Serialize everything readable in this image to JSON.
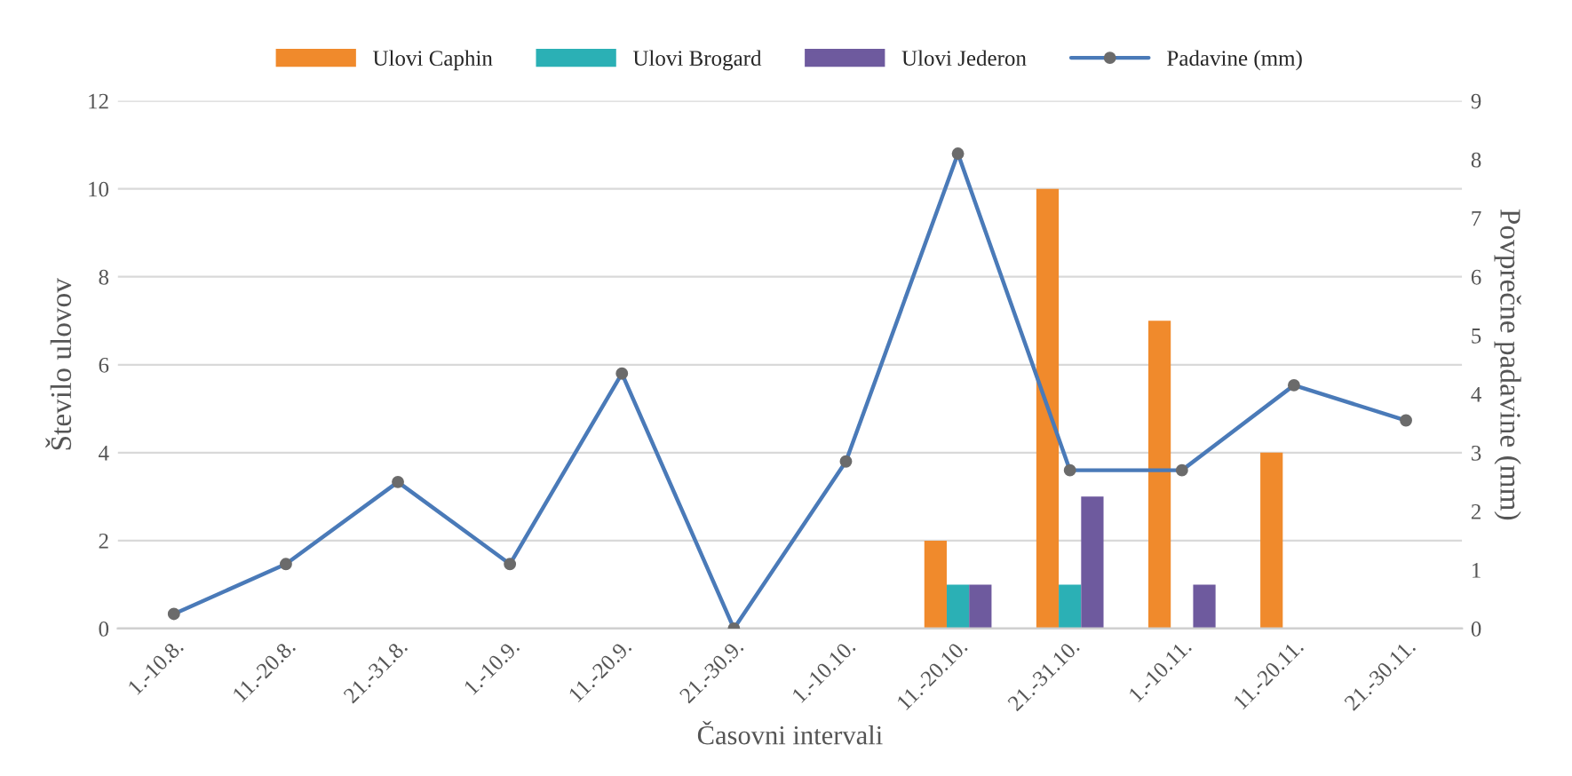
{
  "chart_data": {
    "type": "bar",
    "xlabel": "Časovni intervali",
    "ylabel": "Število ulovov",
    "y2label": "Povprečne padavine (mm)",
    "categories": [
      "1.-10.8.",
      "11.-20.8.",
      "21.-31.8.",
      "1.-10.9.",
      "11.-20.9.",
      "21.-30.9.",
      "1.-10.10.",
      "11.-20.10.",
      "21.-31.10.",
      "1.-10.11.",
      "11.-20.11.",
      "21.-30.11."
    ],
    "series": [
      {
        "name": "Ulovi Caphin",
        "color": "#f08a2c",
        "values": [
          null,
          null,
          null,
          null,
          null,
          null,
          null,
          2,
          10,
          7,
          4,
          null
        ]
      },
      {
        "name": "Ulovi Brogard",
        "color": "#2bb0b5",
        "values": [
          null,
          null,
          null,
          null,
          null,
          null,
          null,
          1,
          1,
          null,
          null,
          null
        ]
      },
      {
        "name": "Ulovi Jederon",
        "color": "#6e5a9e",
        "values": [
          null,
          null,
          null,
          null,
          null,
          null,
          null,
          1,
          3,
          1,
          null,
          null
        ]
      },
      {
        "name": "Padavine (mm)",
        "type": "line",
        "axis": "y2",
        "color": "#4a7ab8",
        "marker": "circle",
        "values": [
          0.25,
          1.1,
          2.5,
          1.1,
          4.35,
          0,
          2.85,
          8.1,
          2.7,
          2.7,
          4.15,
          3.55
        ]
      }
    ],
    "ylim": [
      0,
      12
    ],
    "yticks": [
      0,
      2,
      4,
      6,
      8,
      10,
      12
    ],
    "y2lim": [
      0,
      9
    ],
    "y2ticks": [
      0,
      1,
      2,
      3,
      4,
      5,
      6,
      7,
      8,
      9
    ],
    "grid": "y",
    "legend": "top"
  }
}
